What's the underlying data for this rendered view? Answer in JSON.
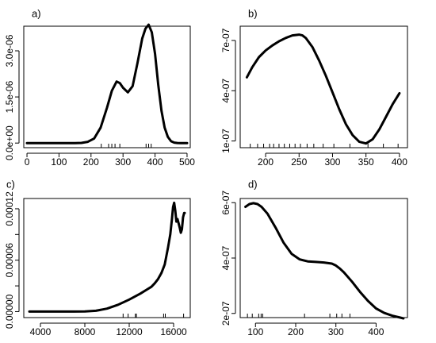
{
  "chart_data": [
    {
      "type": "line",
      "panel_label": "a)",
      "xlim": [
        -10,
        510
      ],
      "ylim": [
        -1.5e-07,
        3.8e-06
      ],
      "x_ticks": [
        0,
        100,
        200,
        300,
        400,
        500
      ],
      "x_tick_labels": [
        "0",
        "100",
        "200",
        "300",
        "400",
        "500"
      ],
      "y_ticks": [
        0,
        1.5e-06,
        3e-06
      ],
      "y_tick_labels": [
        "0.0e+00",
        "1.5e-06",
        "3.0e-06"
      ],
      "rug": [
        232,
        255,
        265,
        275,
        290,
        372,
        380,
        388
      ],
      "series": [
        {
          "x": [
            0,
            100,
            150,
            170,
            190,
            210,
            230,
            250,
            265,
            280,
            290,
            300,
            315,
            330,
            345,
            360,
            370,
            380,
            390,
            400,
            410,
            420,
            430,
            440,
            450,
            460,
            470,
            480,
            490,
            500
          ],
          "y": [
            0,
            0,
            0,
            5e-09,
            4e-08,
            1.5e-07,
            5e-07,
            1.15e-06,
            1.7e-06,
            2e-06,
            1.95e-06,
            1.8e-06,
            1.65e-06,
            1.85e-06,
            2.6e-06,
            3.4e-06,
            3.72e-06,
            3.85e-06,
            3.6e-06,
            2.9e-06,
            1.9e-06,
            1.05e-06,
            5e-07,
            2e-07,
            6e-08,
            1.5e-08,
            3e-09,
            0,
            0,
            0
          ]
        }
      ]
    },
    {
      "type": "line",
      "panel_label": "b)",
      "xlim": [
        162,
        412
      ],
      "ylim": [
        6e-08,
        7.85e-07
      ],
      "x_ticks": [
        200,
        250,
        300,
        350,
        400
      ],
      "x_tick_labels": [
        "200",
        "250",
        "300",
        "350",
        "400"
      ],
      "y_ticks": [
        1e-07,
        4e-07,
        7e-07
      ],
      "y_tick_labels": [
        "1e-07",
        "4e-07",
        "7e-07"
      ],
      "rug": [
        177,
        188,
        197,
        206,
        212,
        220,
        228,
        236,
        244,
        252,
        262,
        272,
        286,
        302,
        326,
        353,
        376,
        398
      ],
      "series": [
        {
          "x": [
            172,
            180,
            190,
            200,
            210,
            220,
            230,
            240,
            250,
            255,
            260,
            270,
            280,
            290,
            300,
            310,
            320,
            330,
            340,
            350,
            360,
            370,
            380,
            390,
            400
          ],
          "y": [
            4.8e-07,
            5.4e-07,
            6e-07,
            6.4e-07,
            6.7e-07,
            6.95e-07,
            7.15e-07,
            7.3e-07,
            7.35e-07,
            7.3e-07,
            7.15e-07,
            6.6e-07,
            5.8e-07,
            4.9e-07,
            3.9e-07,
            2.9e-07,
            2e-07,
            1.35e-07,
            9.5e-08,
            8.5e-08,
            1.1e-07,
            1.7e-07,
            2.45e-07,
            3.2e-07,
            3.85e-07
          ]
        }
      ]
    },
    {
      "type": "line",
      "panel_label": "c)",
      "xlim": [
        2500,
        17500
      ],
      "ylim": [
        -7e-06,
        0.000132
      ],
      "x_ticks": [
        4000,
        8000,
        12000,
        16000
      ],
      "x_tick_labels": [
        "4000",
        "8000",
        "12000",
        "16000"
      ],
      "y_ticks": [
        0,
        6e-05,
        0.00012
      ],
      "y_tick_labels": [
        "0.00000",
        "0.00006",
        "0.00012"
      ],
      "y_minor_ticks": [
        3e-05,
        9e-05
      ],
      "rug": [
        11450,
        11900,
        12550,
        12650,
        15100,
        15250,
        16900
      ],
      "series": [
        {
          "x": [
            3000,
            5000,
            7000,
            8000,
            9000,
            10000,
            11000,
            12000,
            12500,
            13000,
            13500,
            14000,
            14300,
            14600,
            14900,
            15200,
            15500,
            15700,
            15850,
            15950,
            16050,
            16150,
            16250,
            16350,
            16450,
            16550,
            16650,
            16750,
            16850,
            16950,
            17000
          ],
          "y": [
            0,
            0,
            0,
            2e-07,
            1e-06,
            3.5e-06,
            8e-06,
            1.4e-05,
            1.75e-05,
            2.1e-05,
            2.5e-05,
            2.9e-05,
            3.3e-05,
            3.8e-05,
            4.5e-05,
            5.5e-05,
            7.5e-05,
            9e-05,
            0.000108,
            0.000122,
            0.000127,
            0.000118,
            0.000105,
            0.000108,
            0.000103,
            9.8e-05,
            9.2e-05,
            9.6e-05,
            0.00011,
            0.000115,
            0.000115
          ]
        }
      ]
    },
    {
      "type": "line",
      "panel_label": "d)",
      "xlim": [
        62,
        478
      ],
      "ylim": [
        1.85e-07,
        6.15e-07
      ],
      "x_ticks": [
        100,
        200,
        300,
        400
      ],
      "x_tick_labels": [
        "100",
        "200",
        "300",
        "400"
      ],
      "y_ticks": [
        2e-07,
        4e-07,
        6e-07
      ],
      "y_tick_labels": [
        "2e-07",
        "4e-07",
        "6e-07"
      ],
      "rug": [
        80,
        92,
        108,
        114,
        118,
        222,
        285,
        302,
        315,
        335
      ],
      "series": [
        {
          "x": [
            75,
            85,
            95,
            105,
            115,
            130,
            150,
            170,
            190,
            210,
            230,
            250,
            270,
            290,
            300,
            310,
            320,
            340,
            360,
            380,
            400,
            420,
            440,
            460,
            468
          ],
          "y": [
            5.85e-07,
            5.95e-07,
            5.98e-07,
            5.95e-07,
            5.85e-07,
            5.6e-07,
            5.1e-07,
            4.55e-07,
            4.15e-07,
            3.95e-07,
            3.88e-07,
            3.86e-07,
            3.84e-07,
            3.8e-07,
            3.73e-07,
            3.62e-07,
            3.48e-07,
            3.15e-07,
            2.78e-07,
            2.45e-07,
            2.18e-07,
            2.02e-07,
            1.92e-07,
            1.85e-07,
            1.82e-07
          ]
        }
      ]
    }
  ]
}
